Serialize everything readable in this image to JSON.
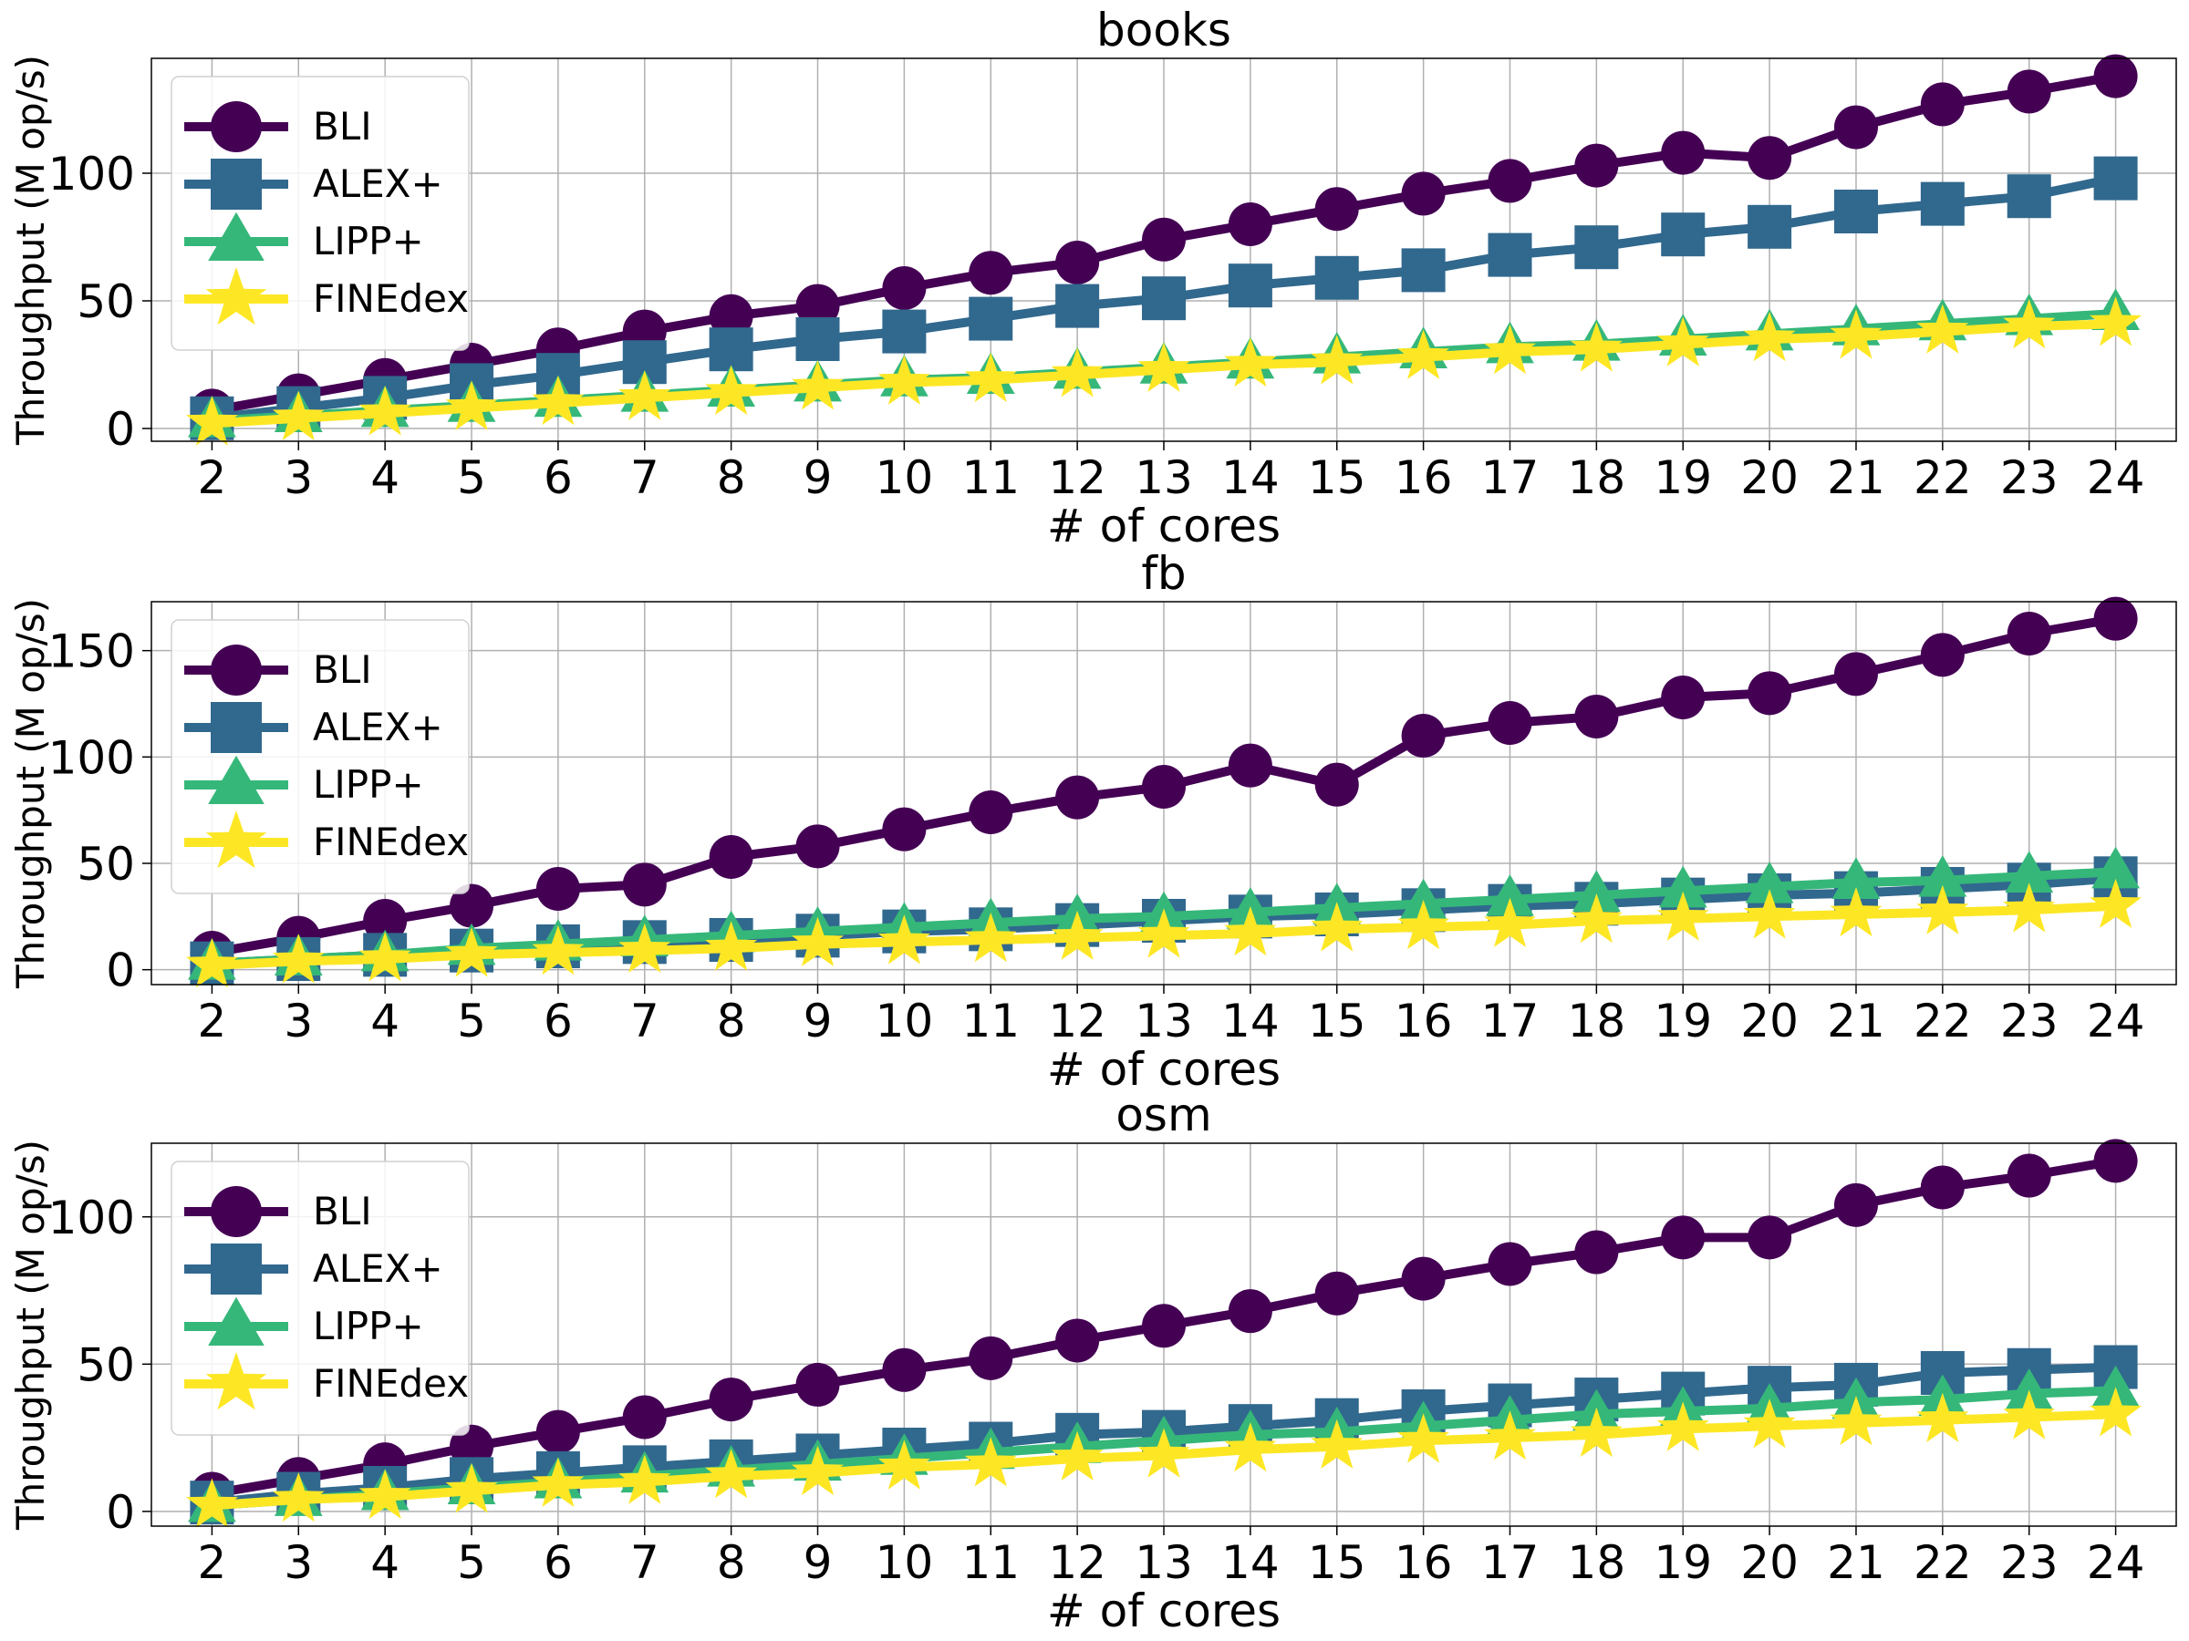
{
  "chart_data": [
    {
      "type": "line",
      "title": "books",
      "xlabel": "# of cores",
      "ylabel": "Throughput (M op/s)",
      "x": [
        2,
        3,
        4,
        5,
        6,
        7,
        8,
        9,
        10,
        11,
        12,
        13,
        14,
        15,
        16,
        17,
        18,
        19,
        20,
        21,
        22,
        23,
        24
      ],
      "ylim": [
        -5,
        145
      ],
      "yticks": [
        0,
        50,
        100
      ],
      "grid": true,
      "legend_position": "top-left",
      "series": [
        {
          "name": "BLI",
          "color": "#440154",
          "marker": "circle",
          "values": [
            7,
            13,
            19,
            25,
            31,
            38,
            44,
            48,
            55,
            61,
            65,
            74,
            80,
            86,
            92,
            97,
            103,
            108,
            106,
            118,
            127,
            132,
            138
          ]
        },
        {
          "name": "ALEX+",
          "color": "#31688e",
          "marker": "square",
          "values": [
            4,
            8,
            12,
            17,
            21,
            26,
            31,
            35,
            38,
            43,
            48,
            51,
            56,
            59,
            62,
            68,
            71,
            76,
            79,
            85,
            88,
            91,
            98
          ]
        },
        {
          "name": "LIPP+",
          "color": "#35b779",
          "marker": "triangle",
          "values": [
            3,
            5,
            7,
            9,
            11,
            13,
            15,
            17,
            19,
            20,
            22,
            24,
            26,
            28,
            30,
            32,
            33,
            35,
            37,
            39,
            41,
            43,
            45
          ]
        },
        {
          "name": "FINEdex",
          "color": "#fde725",
          "marker": "star",
          "values": [
            2,
            4,
            6,
            8,
            10,
            12,
            14,
            16,
            18,
            19,
            21,
            23,
            25,
            26,
            28,
            30,
            31,
            33,
            35,
            36,
            38,
            40,
            41
          ]
        }
      ]
    },
    {
      "type": "line",
      "title": "fb",
      "xlabel": "# of cores",
      "ylabel": "Throughput (M op/s)",
      "x": [
        2,
        3,
        4,
        5,
        6,
        7,
        8,
        9,
        10,
        11,
        12,
        13,
        14,
        15,
        16,
        17,
        18,
        19,
        20,
        21,
        22,
        23,
        24
      ],
      "ylim": [
        -7,
        173
      ],
      "yticks": [
        0,
        50,
        100,
        150
      ],
      "grid": true,
      "legend_position": "top-left",
      "series": [
        {
          "name": "BLI",
          "color": "#440154",
          "marker": "circle",
          "values": [
            8,
            15,
            23,
            30,
            38,
            40,
            53,
            58,
            66,
            74,
            81,
            86,
            96,
            87,
            110,
            116,
            119,
            128,
            130,
            139,
            148,
            158,
            165
          ]
        },
        {
          "name": "ALEX+",
          "color": "#31688e",
          "marker": "square",
          "values": [
            3,
            5,
            7,
            9,
            11,
            13,
            14,
            16,
            18,
            19,
            21,
            23,
            25,
            26,
            28,
            30,
            31,
            33,
            35,
            36,
            38,
            40,
            43
          ]
        },
        {
          "name": "LIPP+",
          "color": "#35b779",
          "marker": "triangle",
          "values": [
            3,
            5,
            7,
            10,
            12,
            14,
            16,
            18,
            20,
            22,
            24,
            25,
            27,
            29,
            31,
            33,
            35,
            37,
            39,
            41,
            42,
            44,
            46
          ]
        },
        {
          "name": "FINEdex",
          "color": "#fde725",
          "marker": "star",
          "values": [
            2,
            4,
            5,
            7,
            8,
            9,
            10,
            12,
            13,
            14,
            15,
            16,
            17,
            19,
            20,
            21,
            23,
            24,
            25,
            26,
            27,
            28,
            30
          ]
        }
      ]
    },
    {
      "type": "line",
      "title": "osm",
      "xlabel": "# of cores",
      "ylabel": "Throughput (M op/s)",
      "x": [
        2,
        3,
        4,
        5,
        6,
        7,
        8,
        9,
        10,
        11,
        12,
        13,
        14,
        15,
        16,
        17,
        18,
        19,
        20,
        21,
        22,
        23,
        24
      ],
      "ylim": [
        -5,
        125
      ],
      "yticks": [
        0,
        50,
        100
      ],
      "grid": true,
      "legend_position": "top-left",
      "series": [
        {
          "name": "BLI",
          "color": "#440154",
          "marker": "circle",
          "values": [
            6,
            11,
            16,
            22,
            27,
            32,
            38,
            43,
            48,
            52,
            58,
            63,
            68,
            74,
            79,
            84,
            88,
            93,
            93,
            104,
            110,
            114,
            119
          ]
        },
        {
          "name": "ALEX+",
          "color": "#31688e",
          "marker": "square",
          "values": [
            3,
            6,
            8,
            11,
            13,
            15,
            17,
            19,
            21,
            23,
            26,
            27,
            29,
            31,
            34,
            36,
            38,
            40,
            42,
            43,
            47,
            48,
            49
          ]
        },
        {
          "name": "LIPP+",
          "color": "#35b779",
          "marker": "triangle",
          "values": [
            2,
            4,
            6,
            8,
            10,
            12,
            14,
            16,
            18,
            20,
            22,
            24,
            26,
            27,
            29,
            31,
            33,
            34,
            35,
            37,
            38,
            40,
            41
          ]
        },
        {
          "name": "FINEdex",
          "color": "#fde725",
          "marker": "star",
          "values": [
            2,
            4,
            5,
            7,
            9,
            10,
            12,
            13,
            15,
            16,
            18,
            19,
            21,
            22,
            24,
            25,
            26,
            28,
            29,
            30,
            31,
            32,
            33
          ]
        }
      ]
    }
  ]
}
